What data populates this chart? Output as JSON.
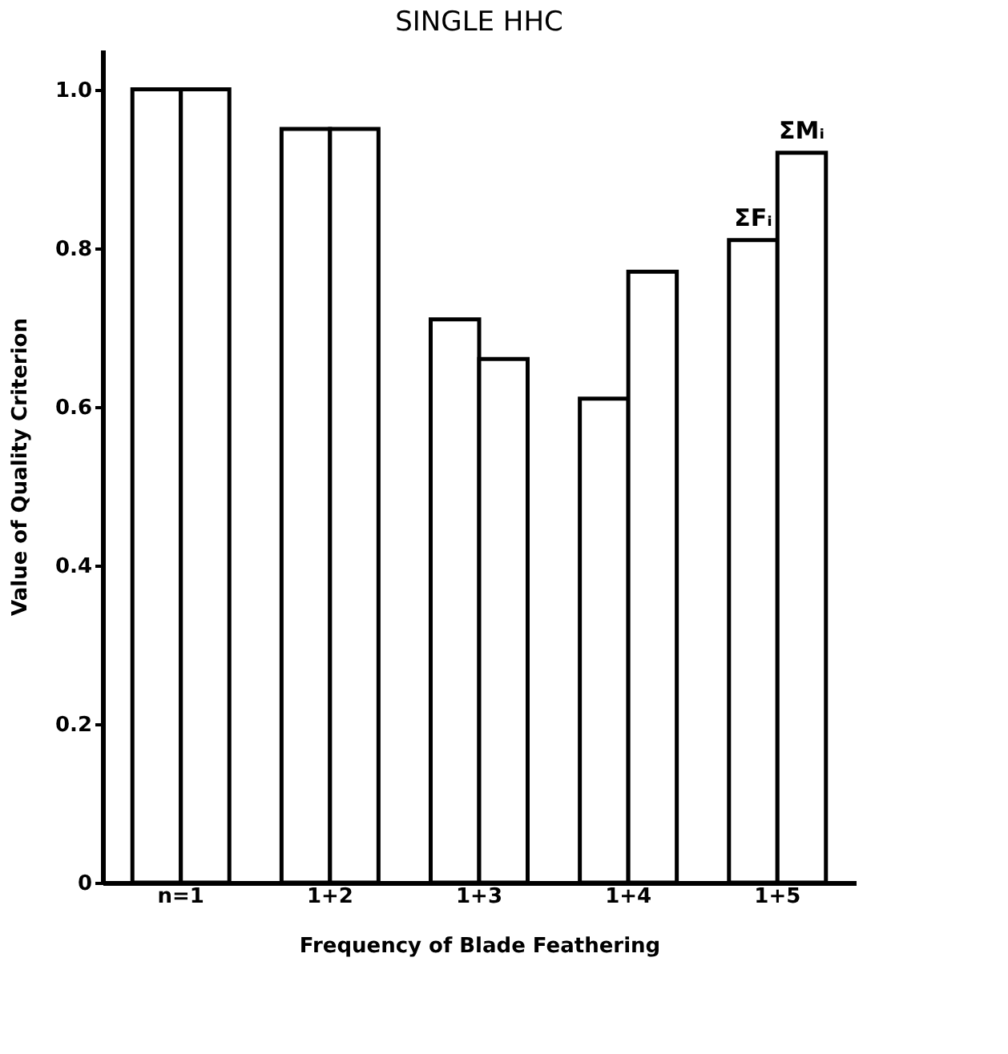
{
  "chart_data": {
    "type": "bar",
    "title": "SINGLE HHC",
    "xlabel": "Frequency of  Blade  Feathering",
    "ylabel": "Value of  Quality  Criterion",
    "categories": [
      "n=1",
      "1+2",
      "1+3",
      "1+4",
      "1+5"
    ],
    "series": [
      {
        "name": "ΣFᵢ",
        "color": "#ffffff",
        "values": [
          1.0,
          0.95,
          0.71,
          0.61,
          0.81
        ]
      },
      {
        "name": "ΣMᵢ",
        "color": "#ffffff",
        "values": [
          1.0,
          0.95,
          0.66,
          0.77,
          0.92
        ]
      }
    ],
    "ylim": [
      0,
      1.05
    ],
    "yticks": [
      {
        "value": 0,
        "label": "0"
      },
      0.2,
      0.4,
      0.6,
      0.8,
      {
        "value": 1.0,
        "label": "1.0"
      }
    ],
    "grid": false,
    "legend": false
  }
}
